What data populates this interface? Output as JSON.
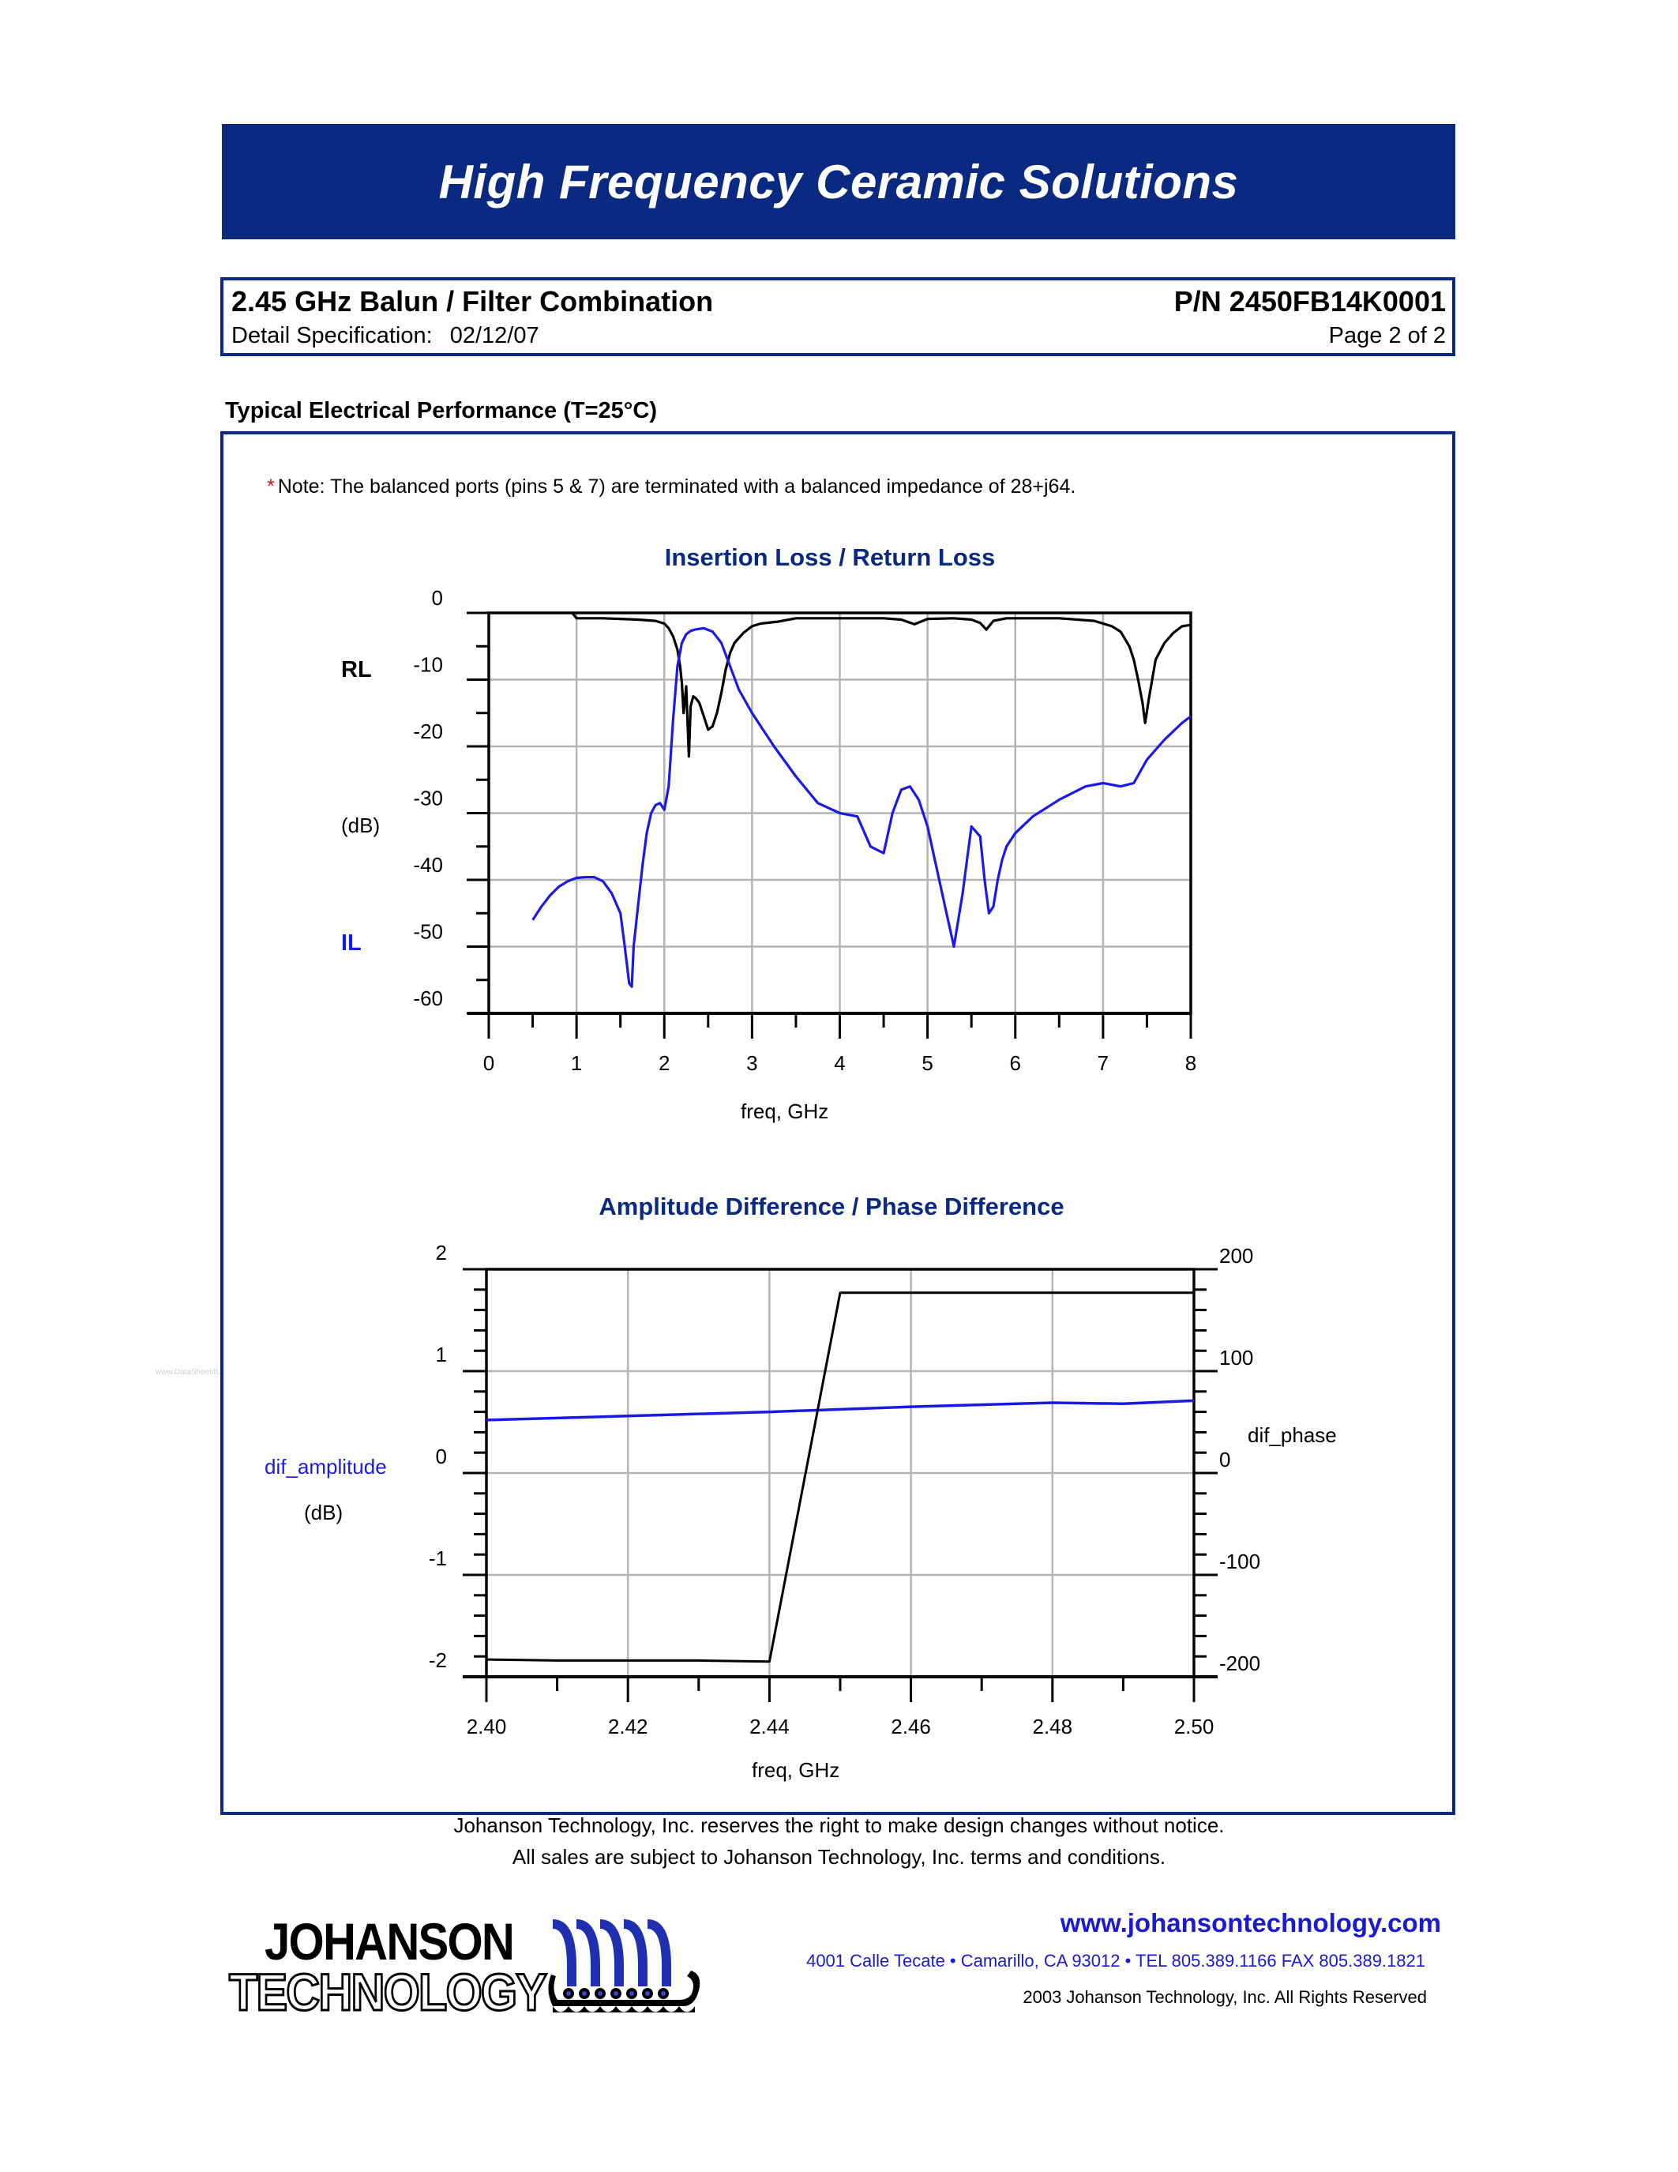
{
  "banner": {
    "title": "High Frequency Ceramic Solutions",
    "color": "#0A2A82"
  },
  "header": {
    "product_title": "2.45 GHz Balun / Filter Combination",
    "part_number": "P/N 2450FB14K0001",
    "spec_label": "Detail Specification:",
    "spec_date": "02/12/07",
    "page": "Page 2 of 2"
  },
  "section": {
    "title": "Typical Electrical Performance (T=25°C)"
  },
  "note": {
    "star": "*",
    "text": "Note: The balanced ports (pins 5 & 7) are terminated with a balanced impedance of 28+j64."
  },
  "watermark": "www.DataSheet4U.net",
  "chart_data": [
    {
      "type": "line",
      "title": "Insertion Loss / Return Loss",
      "xlabel": "freq, GHz",
      "ylabel": "(dB)",
      "left_labels": {
        "top": "RL",
        "bottom": "IL"
      },
      "xlim": [
        0,
        8
      ],
      "ylim": [
        -60,
        0
      ],
      "xticks": [
        0,
        1,
        2,
        3,
        4,
        5,
        6,
        7,
        8
      ],
      "yticks": [
        0,
        -10,
        -20,
        -30,
        -40,
        -50,
        -60
      ],
      "grid": true,
      "legend": "none",
      "series": [
        {
          "name": "RL",
          "color": "#000000",
          "x": [
            0.95,
            1.0,
            1.1,
            1.3,
            1.5,
            1.7,
            1.9,
            2.0,
            2.05,
            2.1,
            2.15,
            2.18,
            2.2,
            2.22,
            2.25,
            2.28,
            2.3,
            2.33,
            2.36,
            2.4,
            2.45,
            2.5,
            2.55,
            2.6,
            2.65,
            2.7,
            2.75,
            2.8,
            2.9,
            3.0,
            3.1,
            3.3,
            3.5,
            4.0,
            4.5,
            4.7,
            4.85,
            5.0,
            5.3,
            5.5,
            5.6,
            5.67,
            5.75,
            5.9,
            6.2,
            6.5,
            6.9,
            7.1,
            7.2,
            7.3,
            7.35,
            7.4,
            7.45,
            7.48,
            7.52,
            7.56,
            7.6,
            7.7,
            7.8,
            7.9,
            8.0
          ],
          "y": [
            0.0,
            -0.8,
            -0.8,
            -0.8,
            -0.9,
            -1.0,
            -1.2,
            -1.6,
            -2.3,
            -3.5,
            -5.5,
            -8.0,
            -10.5,
            -15.0,
            -11.0,
            -21.5,
            -14.0,
            -12.5,
            -12.8,
            -13.5,
            -15.5,
            -17.5,
            -17.0,
            -15.0,
            -12.0,
            -8.5,
            -6.0,
            -4.5,
            -3.0,
            -2.0,
            -1.6,
            -1.3,
            -0.8,
            -0.8,
            -0.8,
            -1.0,
            -1.7,
            -0.9,
            -0.8,
            -1.0,
            -1.5,
            -2.5,
            -1.2,
            -0.8,
            -0.8,
            -0.8,
            -1.2,
            -2.0,
            -2.8,
            -5.0,
            -7.0,
            -10.0,
            -13.5,
            -16.5,
            -13.0,
            -10.0,
            -7.0,
            -4.5,
            -3.0,
            -2.0,
            -1.8
          ]
        },
        {
          "name": "IL",
          "color": "#1a1ae6",
          "x": [
            0.5,
            0.6,
            0.7,
            0.8,
            0.9,
            1.0,
            1.1,
            1.2,
            1.3,
            1.4,
            1.5,
            1.55,
            1.6,
            1.63,
            1.65,
            1.7,
            1.75,
            1.8,
            1.85,
            1.9,
            1.95,
            2.0,
            2.05,
            2.1,
            2.15,
            2.2,
            2.25,
            2.3,
            2.35,
            2.45,
            2.55,
            2.65,
            2.75,
            2.85,
            3.0,
            3.25,
            3.5,
            3.75,
            4.0,
            4.2,
            4.35,
            4.5,
            4.6,
            4.7,
            4.8,
            4.9,
            5.0,
            5.1,
            5.2,
            5.3,
            5.4,
            5.45,
            5.5,
            5.6,
            5.65,
            5.7,
            5.75,
            5.8,
            5.85,
            5.9,
            6.0,
            6.2,
            6.5,
            6.8,
            7.0,
            7.2,
            7.35,
            7.5,
            7.7,
            7.9,
            8.0
          ],
          "y": [
            -46.0,
            -44.0,
            -42.3,
            -41.0,
            -40.2,
            -39.7,
            -39.6,
            -39.6,
            -40.2,
            -42.0,
            -45.0,
            -50.0,
            -55.5,
            -56.0,
            -50.0,
            -44.0,
            -38.0,
            -33.0,
            -30.0,
            -28.8,
            -28.5,
            -29.5,
            -26.0,
            -16.0,
            -8.0,
            -4.5,
            -3.2,
            -2.7,
            -2.5,
            -2.3,
            -2.8,
            -4.5,
            -8.0,
            -11.5,
            -15.0,
            -20.0,
            -24.5,
            -28.5,
            -30.0,
            -30.5,
            -35.0,
            -36.0,
            -30.0,
            -26.5,
            -26.0,
            -28.0,
            -32.0,
            -38.0,
            -44.0,
            -50.0,
            -42.0,
            -37.0,
            -32.0,
            -33.5,
            -40.0,
            -45.0,
            -44.0,
            -40.0,
            -37.0,
            -35.0,
            -33.0,
            -30.5,
            -28.0,
            -26.0,
            -25.5,
            -26.0,
            -25.5,
            -22.0,
            -19.0,
            -16.5,
            -15.5
          ]
        }
      ]
    },
    {
      "type": "line",
      "title": "Amplitude Difference / Phase Difference",
      "xlabel": "freq, GHz",
      "ylabel_left": "dif_amplitude",
      "ylabel_left_unit": "(dB)",
      "ylabel_right": "dif_phase",
      "xlim": [
        2.4,
        2.5
      ],
      "ylim_left": [
        -2,
        2
      ],
      "ylim_right": [
        -200,
        200
      ],
      "xticks": [
        "2.40",
        "2.42",
        "2.44",
        "2.46",
        "2.48",
        "2.50"
      ],
      "yticks_left": [
        "2",
        "1",
        "0",
        "-1",
        "-2"
      ],
      "yticks_right": [
        "200",
        "100",
        "0",
        "-100",
        "-200"
      ],
      "grid": true,
      "legend": "none",
      "series": [
        {
          "name": "dif_amplitude",
          "axis": "left",
          "color": "#1a1ae6",
          "x": [
            2.4,
            2.42,
            2.44,
            2.46,
            2.48,
            2.49,
            2.5
          ],
          "y": [
            0.52,
            0.56,
            0.6,
            0.65,
            0.69,
            0.68,
            0.71
          ]
        },
        {
          "name": "dif_phase",
          "axis": "right",
          "color": "#000000",
          "x": [
            2.4,
            2.41,
            2.42,
            2.43,
            2.44,
            2.45,
            2.46,
            2.48,
            2.5
          ],
          "y": [
            -183,
            -184,
            -184,
            -184,
            -185,
            177,
            177,
            177,
            177
          ]
        }
      ]
    }
  ],
  "footer": {
    "line1": "Johanson Technology, Inc. reserves the right to make design changes without notice.",
    "line2": "All sales are subject to Johanson Technology, Inc. terms and conditions.",
    "logo_word1": "JOHANSON",
    "logo_word2": "TECHNOLOGY",
    "url": "www.johansontechnology.com",
    "address": "4001 Calle Tecate • Camarillo, CA 93012 • TEL 805.389.1166 FAX 805.389.1821",
    "copyright": "2003 Johanson Technology, Inc.  All Rights Reserved",
    "link_color": "#1a1ad0"
  }
}
